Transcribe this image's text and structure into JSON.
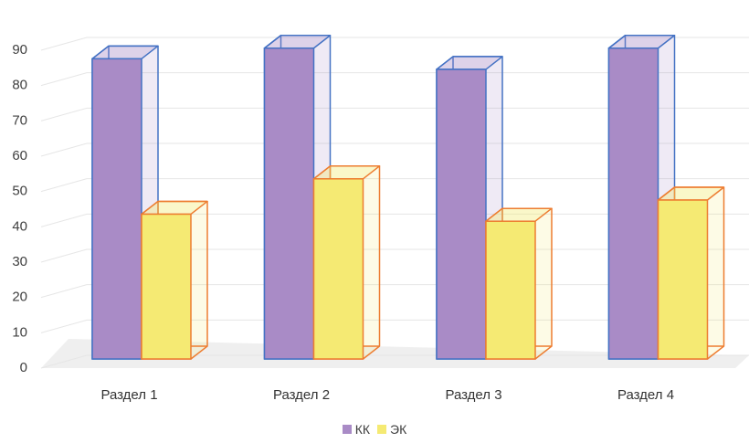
{
  "chart_data": {
    "type": "bar",
    "categories": [
      "Раздел 1",
      "Раздел 2",
      "Раздел 3",
      "Раздел 4"
    ],
    "series": [
      {
        "name": "КК",
        "values": [
          85,
          88,
          82,
          88
        ],
        "color": "#a98bc6",
        "edge_color": "#4472c4"
      },
      {
        "name": "ЭК",
        "values": [
          41,
          51,
          39,
          45
        ],
        "color": "#f5ea73",
        "edge_color": "#ed7d31"
      }
    ],
    "ylim": [
      0,
      90
    ],
    "yticks": [
      0,
      10,
      20,
      30,
      40,
      50,
      60,
      70,
      80,
      90
    ],
    "grid": true,
    "style": "3d-clustered-column",
    "legend": "bottom-center"
  }
}
